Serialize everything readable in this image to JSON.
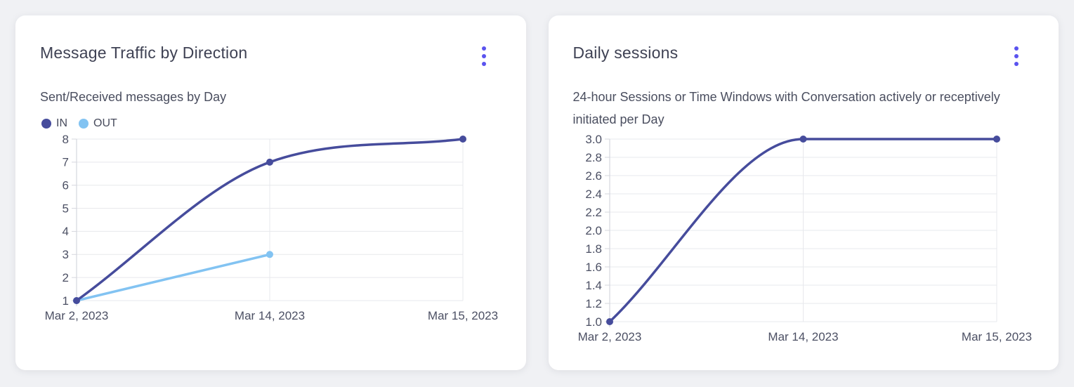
{
  "page": {
    "background_color": "#f0f1f4",
    "accent_color": "#5a53ef"
  },
  "cards": [
    {
      "title": "Message Traffic by Direction",
      "subtitle": "Sent/Received messages by Day",
      "menu": {
        "icon": "kebab-menu-icon",
        "color": "#5a53ef"
      }
    },
    {
      "title": "Daily sessions",
      "subtitle": "24-hour Sessions or Time Windows with Conversation actively or receptively initiated per Day",
      "menu": {
        "icon": "kebab-menu-icon",
        "color": "#5a53ef"
      }
    }
  ],
  "chart_data": [
    {
      "type": "line",
      "title": "Message Traffic by Direction",
      "categories": [
        "Mar 2, 2023",
        "Mar 14, 2023",
        "Mar 15, 2023"
      ],
      "series": [
        {
          "name": "IN",
          "color": "#464c9c",
          "values": [
            1,
            7,
            8
          ]
        },
        {
          "name": "OUT",
          "color": "#82c3f2",
          "values": [
            1,
            3,
            null
          ]
        }
      ],
      "ylim": [
        1,
        8
      ],
      "ytick_step": 1,
      "ytick_decimals": 0,
      "grid": true,
      "smooth": true,
      "legend_position": "top-left",
      "grid_color": "#e7e8ec",
      "axis_color": "#d5d7de"
    },
    {
      "type": "line",
      "title": "Daily sessions",
      "categories": [
        "Mar 2, 2023",
        "Mar 14, 2023",
        "Mar 15, 2023"
      ],
      "series": [
        {
          "name": "Daily sessions",
          "color": "#464c9c",
          "values": [
            1,
            3,
            3
          ]
        }
      ],
      "ylim": [
        1,
        3
      ],
      "ytick_step": 0.2,
      "ytick_decimals": 1,
      "grid": true,
      "smooth": true,
      "legend_position": "none",
      "grid_color": "#e7e8ec",
      "axis_color": "#d5d7de"
    }
  ]
}
